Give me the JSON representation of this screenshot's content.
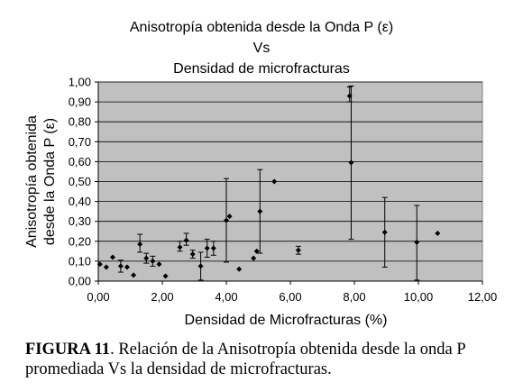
{
  "chart_data": {
    "type": "scatter",
    "title": "Anisotropía obtenida desde la Onda P (ε)",
    "title_line2": "Vs",
    "title_line3": "Densidad de microfracturas",
    "xlabel": "Densidad de Microfracturas (%)",
    "ylabel_line1": "Anisotropía obtenida",
    "ylabel_line2": "desde la Onda P (ε)",
    "xlim": [
      0,
      12
    ],
    "ylim": [
      0,
      1
    ],
    "x_ticks": [
      "0,00",
      "2,00",
      "4,00",
      "6,00",
      "8,00",
      "10,00",
      "12,00"
    ],
    "y_ticks": [
      "0,00",
      "0,10",
      "0,20",
      "0,30",
      "0,40",
      "0,50",
      "0,60",
      "0,70",
      "0,80",
      "0,90",
      "1,00"
    ],
    "grid": true,
    "legend": "none",
    "plot_background": "#c0c0c0",
    "marker_color": "#000000",
    "points": [
      {
        "x": 0.05,
        "y": 0.085
      },
      {
        "x": 0.25,
        "y": 0.07
      },
      {
        "x": 0.45,
        "y": 0.12
      },
      {
        "x": 0.7,
        "y": 0.075,
        "lo": 0.045,
        "hi": 0.105
      },
      {
        "x": 0.9,
        "y": 0.07
      },
      {
        "x": 1.1,
        "y": 0.03
      },
      {
        "x": 1.3,
        "y": 0.185,
        "lo": 0.145,
        "hi": 0.235
      },
      {
        "x": 1.5,
        "y": 0.115,
        "lo": 0.09,
        "hi": 0.14
      },
      {
        "x": 1.7,
        "y": 0.1,
        "lo": 0.075,
        "hi": 0.125
      },
      {
        "x": 1.9,
        "y": 0.085
      },
      {
        "x": 2.1,
        "y": 0.025
      },
      {
        "x": 2.55,
        "y": 0.17,
        "lo": 0.15,
        "hi": 0.2
      },
      {
        "x": 2.75,
        "y": 0.205,
        "lo": 0.18,
        "hi": 0.24
      },
      {
        "x": 2.95,
        "y": 0.135,
        "lo": 0.115,
        "hi": 0.155
      },
      {
        "x": 3.2,
        "y": 0.075,
        "lo": 0.005,
        "hi": 0.145
      },
      {
        "x": 3.4,
        "y": 0.165,
        "lo": 0.12,
        "hi": 0.21
      },
      {
        "x": 3.6,
        "y": 0.165,
        "lo": 0.13,
        "hi": 0.2
      },
      {
        "x": 4.0,
        "y": 0.305,
        "lo": 0.095,
        "hi": 0.515
      },
      {
        "x": 4.1,
        "y": 0.325
      },
      {
        "x": 4.4,
        "y": 0.06
      },
      {
        "x": 4.85,
        "y": 0.115
      },
      {
        "x": 4.95,
        "y": 0.15
      },
      {
        "x": 5.05,
        "y": 0.35,
        "lo": 0.14,
        "hi": 0.56
      },
      {
        "x": 5.5,
        "y": 0.5
      },
      {
        "x": 6.25,
        "y": 0.155,
        "lo": 0.135,
        "hi": 0.175
      },
      {
        "x": 7.85,
        "y": 0.93,
        "lo": 0.9,
        "hi": 0.975
      },
      {
        "x": 7.9,
        "y": 0.595,
        "lo": 0.21,
        "hi": 0.98
      },
      {
        "x": 8.95,
        "y": 0.245,
        "lo": 0.07,
        "hi": 0.42
      },
      {
        "x": 9.95,
        "y": 0.195,
        "lo": 0.005,
        "hi": 0.38
      },
      {
        "x": 10.6,
        "y": 0.24
      }
    ]
  },
  "caption": {
    "label": "FIGURA 11",
    "text": ". Relación de la Anisotropía obtenida desde la onda P promediada Vs la densidad de microfracturas."
  }
}
